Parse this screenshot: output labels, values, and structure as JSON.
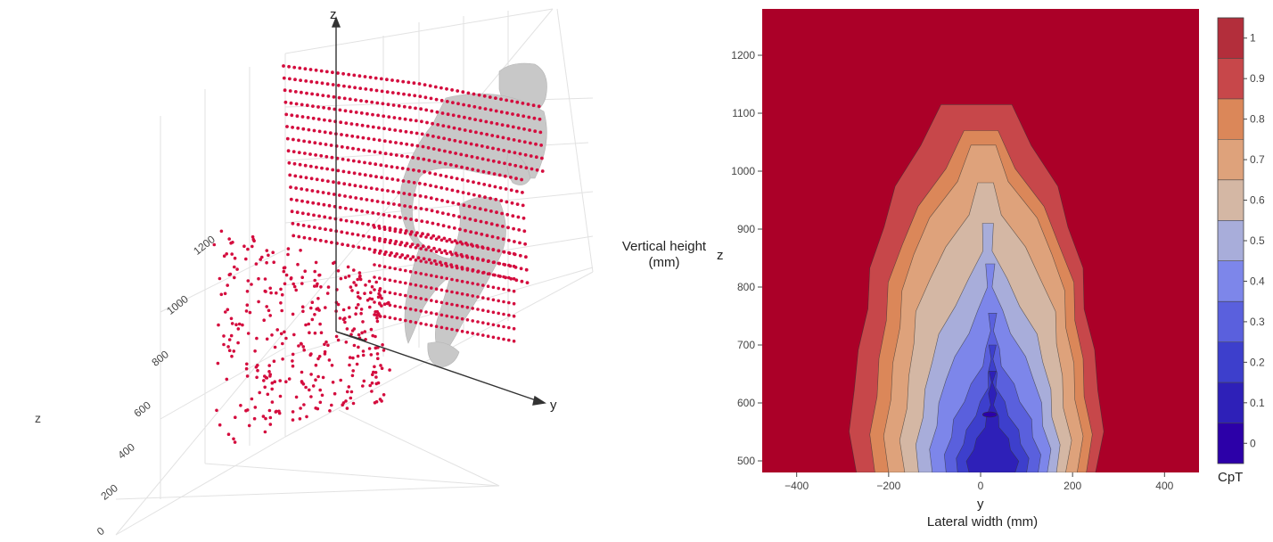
{
  "chart_data": [
    {
      "type": "scatter",
      "subtype": "3d",
      "marker_color": "#d40d3e",
      "body_color": "#c8c8c8",
      "axes": {
        "x_label": "",
        "y_label": "y",
        "z_label": "z",
        "z_side_label": "z"
      },
      "z_ticks": [
        "0",
        "200",
        "400",
        "600",
        "800",
        "1000",
        "1200"
      ],
      "zlim": [
        0,
        1300
      ],
      "grid": true,
      "planes": {
        "upper": {
          "z_min": 820,
          "z_max": 1230,
          "rows": 15
        },
        "lower": {
          "z_min": 380,
          "z_max": 820
        }
      }
    },
    {
      "type": "heatmap",
      "subtype": "contour",
      "x_label": "y",
      "x_title": "Lateral width (mm)",
      "y_label": "z",
      "y_title_lines": [
        "Vertical height",
        "(mm)"
      ],
      "x_ticks": [
        -400,
        -200,
        0,
        200,
        400
      ],
      "x_tick_labels": [
        "−400",
        "−200",
        "0",
        "200",
        "400"
      ],
      "y_ticks": [
        500,
        600,
        700,
        800,
        900,
        1000,
        1100,
        1200
      ],
      "y_tick_labels": [
        "500",
        "600",
        "700",
        "800",
        "900",
        "1000",
        "1100",
        "1200"
      ],
      "xlim": [
        -475,
        475
      ],
      "ylim": [
        480,
        1280
      ],
      "contour_levels": [
        1.0,
        0.9,
        0.8,
        0.7,
        0.6,
        0.5,
        0.4,
        0.3,
        0.2,
        0.1,
        0.0
      ],
      "minimum_location": {
        "y": 20,
        "z": 580,
        "value": 0.0
      },
      "colorbar": {
        "title": "CpT",
        "ticks": [
          0,
          0.1,
          0.2,
          0.3,
          0.4,
          0.5,
          0.6,
          0.7,
          0.8,
          0.9,
          1
        ],
        "tick_labels": [
          "0",
          "0.1",
          "0.2",
          "0.3",
          "0.4",
          "0.5",
          "0.6",
          "0.7",
          "0.8",
          "0.9",
          "1"
        ],
        "range": [
          -0.05,
          1.05
        ],
        "bands": [
          {
            "lo": -0.05,
            "hi": 0.05,
            "color": "#2c00a8"
          },
          {
            "lo": 0.05,
            "hi": 0.15,
            "color": "#2e20b8"
          },
          {
            "lo": 0.15,
            "hi": 0.25,
            "color": "#3d3fcc"
          },
          {
            "lo": 0.25,
            "hi": 0.35,
            "color": "#5a60dd"
          },
          {
            "lo": 0.35,
            "hi": 0.45,
            "color": "#7d86ea"
          },
          {
            "lo": 0.45,
            "hi": 0.55,
            "color": "#a8adda"
          },
          {
            "lo": 0.55,
            "hi": 0.65,
            "color": "#d4b7a4"
          },
          {
            "lo": 0.65,
            "hi": 0.75,
            "color": "#dea27b"
          },
          {
            "lo": 0.75,
            "hi": 0.85,
            "color": "#db8759"
          },
          {
            "lo": 0.85,
            "hi": 0.95,
            "color": "#c7474a"
          },
          {
            "lo": 0.95,
            "hi": 1.05,
            "color": "#b32e3b"
          }
        ],
        "outside_color": "#ab0028"
      }
    }
  ]
}
